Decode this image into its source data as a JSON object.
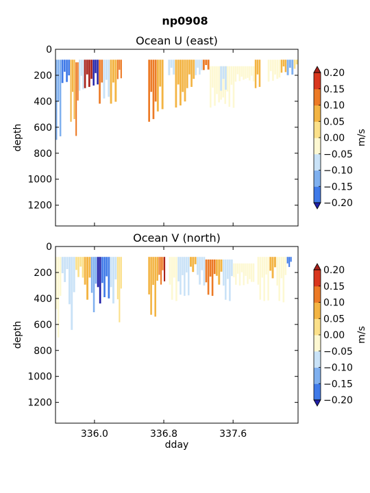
{
  "figure": {
    "title": "np0908"
  },
  "colorbar": {
    "label": "m/s",
    "levels": [
      -0.2,
      -0.15,
      -0.1,
      -0.05,
      0.0,
      0.05,
      0.1,
      0.15,
      0.2
    ],
    "tick_labels": [
      "0.20",
      "0.15",
      "0.10",
      "0.05",
      "0.00",
      "−0.05",
      "−0.10",
      "−0.15",
      "−0.20"
    ],
    "colors": [
      "#1f1fe6",
      "#3f7ae8",
      "#7fb0ef",
      "#c9e2f7",
      "#fdf8d2",
      "#fbe08a",
      "#f3b443",
      "#ec7a25",
      "#d9361d"
    ],
    "under_color": "#2020a8",
    "over_color": "#a8221a"
  },
  "chart_data": [
    {
      "type": "heatmap",
      "title": "Ocean U (east)",
      "ylabel": "depth",
      "xlabel": "",
      "xlim": [
        335.55,
        338.35
      ],
      "ylim": [
        1360,
        0
      ],
      "x_ticks": [
        336.0,
        336.8,
        337.6
      ],
      "x_tick_labels": [
        "336.0",
        "336.8",
        "337.6"
      ],
      "y_ticks": [
        0,
        200,
        400,
        600,
        800,
        1000,
        1200
      ],
      "y_tick_labels": [
        "0",
        "200",
        "400",
        "600",
        "800",
        "1000",
        "1200"
      ],
      "colorbar_label": "m/s",
      "patches": [
        {
          "x0": 335.55,
          "x1": 335.62,
          "top": 80,
          "bottom": 700,
          "value": -0.12
        },
        {
          "x0": 335.62,
          "x1": 335.72,
          "top": 80,
          "bottom": 260,
          "value": -0.18
        },
        {
          "x0": 335.72,
          "x1": 335.78,
          "top": 80,
          "bottom": 560,
          "value": 0.06
        },
        {
          "x0": 335.78,
          "x1": 335.82,
          "top": 100,
          "bottom": 670,
          "value": 0.1
        },
        {
          "x0": 335.82,
          "x1": 335.88,
          "top": 80,
          "bottom": 320,
          "value": -0.08
        },
        {
          "x0": 335.88,
          "x1": 335.98,
          "top": 80,
          "bottom": 300,
          "value": 0.2
        },
        {
          "x0": 335.98,
          "x1": 336.05,
          "top": 80,
          "bottom": 280,
          "value": -0.22
        },
        {
          "x0": 336.05,
          "x1": 336.1,
          "top": 80,
          "bottom": 420,
          "value": 0.12
        },
        {
          "x0": 336.1,
          "x1": 336.18,
          "top": 80,
          "bottom": 380,
          "value": -0.1
        },
        {
          "x0": 336.18,
          "x1": 336.26,
          "top": 80,
          "bottom": 420,
          "value": 0.05
        },
        {
          "x0": 336.26,
          "x1": 336.32,
          "top": 80,
          "bottom": 230,
          "value": 0.14
        },
        {
          "x0": 336.62,
          "x1": 336.72,
          "top": 80,
          "bottom": 560,
          "value": 0.12
        },
        {
          "x0": 336.72,
          "x1": 336.8,
          "top": 80,
          "bottom": 480,
          "value": 0.08
        },
        {
          "x0": 336.85,
          "x1": 336.93,
          "top": 80,
          "bottom": 200,
          "value": -0.08
        },
        {
          "x0": 336.93,
          "x1": 337.06,
          "top": 80,
          "bottom": 450,
          "value": 0.05
        },
        {
          "x0": 337.06,
          "x1": 337.16,
          "top": 80,
          "bottom": 300,
          "value": 0.08
        },
        {
          "x0": 337.16,
          "x1": 337.25,
          "top": 80,
          "bottom": 200,
          "value": -0.1
        },
        {
          "x0": 337.25,
          "x1": 337.33,
          "top": 80,
          "bottom": 160,
          "value": 0.12
        },
        {
          "x0": 337.33,
          "x1": 337.62,
          "top": 130,
          "bottom": 450,
          "value": -0.04
        },
        {
          "x0": 337.45,
          "x1": 337.53,
          "top": 130,
          "bottom": 320,
          "value": -0.08
        },
        {
          "x0": 337.62,
          "x1": 337.85,
          "top": 130,
          "bottom": 250,
          "value": -0.03
        },
        {
          "x0": 337.85,
          "x1": 337.92,
          "top": 80,
          "bottom": 300,
          "value": 0.05
        },
        {
          "x0": 338.0,
          "x1": 338.15,
          "top": 80,
          "bottom": 250,
          "value": -0.04
        },
        {
          "x0": 338.15,
          "x1": 338.22,
          "top": 80,
          "bottom": 180,
          "value": 0.06
        },
        {
          "x0": 338.22,
          "x1": 338.3,
          "top": 80,
          "bottom": 200,
          "value": -0.12
        },
        {
          "x0": 338.3,
          "x1": 338.35,
          "top": 80,
          "bottom": 150,
          "value": 0.04
        }
      ]
    },
    {
      "type": "heatmap",
      "title": "Ocean V (north)",
      "ylabel": "depth",
      "xlabel": "dday",
      "xlim": [
        335.55,
        338.35
      ],
      "ylim": [
        1360,
        0
      ],
      "x_ticks": [
        336.0,
        336.8,
        337.6
      ],
      "x_tick_labels": [
        "336.0",
        "336.8",
        "337.6"
      ],
      "y_ticks": [
        0,
        200,
        400,
        600,
        800,
        1000,
        1200
      ],
      "y_tick_labels": [
        "0",
        "200",
        "400",
        "600",
        "800",
        "1000",
        "1200"
      ],
      "colorbar_label": "m/s",
      "patches": [
        {
          "x0": 335.55,
          "x1": 335.62,
          "top": 80,
          "bottom": 720,
          "value": -0.04
        },
        {
          "x0": 335.62,
          "x1": 335.7,
          "top": 80,
          "bottom": 280,
          "value": -0.08
        },
        {
          "x0": 335.7,
          "x1": 335.78,
          "top": 80,
          "bottom": 660,
          "value": -0.1
        },
        {
          "x0": 335.78,
          "x1": 335.88,
          "top": 80,
          "bottom": 240,
          "value": 0.04
        },
        {
          "x0": 335.88,
          "x1": 335.96,
          "top": 80,
          "bottom": 420,
          "value": 0.06
        },
        {
          "x0": 335.96,
          "x1": 336.03,
          "top": 80,
          "bottom": 520,
          "value": -0.12
        },
        {
          "x0": 336.03,
          "x1": 336.08,
          "top": 80,
          "bottom": 450,
          "value": -0.22
        },
        {
          "x0": 336.08,
          "x1": 336.18,
          "top": 80,
          "bottom": 400,
          "value": -0.18
        },
        {
          "x0": 336.18,
          "x1": 336.26,
          "top": 80,
          "bottom": 450,
          "value": -0.06
        },
        {
          "x0": 336.26,
          "x1": 336.32,
          "top": 80,
          "bottom": 600,
          "value": 0.04
        },
        {
          "x0": 336.62,
          "x1": 336.74,
          "top": 80,
          "bottom": 540,
          "value": 0.08
        },
        {
          "x0": 336.74,
          "x1": 336.8,
          "top": 80,
          "bottom": 300,
          "value": 0.12
        },
        {
          "x0": 336.8,
          "x1": 336.82,
          "top": 80,
          "bottom": 380,
          "value": 0.22
        },
        {
          "x0": 336.86,
          "x1": 336.96,
          "top": 80,
          "bottom": 420,
          "value": -0.04
        },
        {
          "x0": 336.96,
          "x1": 337.1,
          "top": 80,
          "bottom": 380,
          "value": -0.06
        },
        {
          "x0": 337.1,
          "x1": 337.18,
          "top": 80,
          "bottom": 200,
          "value": 0.06
        },
        {
          "x0": 337.18,
          "x1": 337.28,
          "top": 80,
          "bottom": 300,
          "value": -0.06
        },
        {
          "x0": 337.28,
          "x1": 337.4,
          "top": 100,
          "bottom": 380,
          "value": 0.1
        },
        {
          "x0": 337.4,
          "x1": 337.48,
          "top": 100,
          "bottom": 300,
          "value": 0.06
        },
        {
          "x0": 337.48,
          "x1": 337.6,
          "top": 100,
          "bottom": 420,
          "value": -0.06
        },
        {
          "x0": 337.6,
          "x1": 337.85,
          "top": 130,
          "bottom": 300,
          "value": -0.03
        },
        {
          "x0": 337.88,
          "x1": 338.02,
          "top": 80,
          "bottom": 420,
          "value": -0.05
        },
        {
          "x0": 338.02,
          "x1": 338.1,
          "top": 80,
          "bottom": 250,
          "value": 0.08
        },
        {
          "x0": 338.1,
          "x1": 338.22,
          "top": 80,
          "bottom": 430,
          "value": -0.04
        },
        {
          "x0": 338.22,
          "x1": 338.28,
          "top": 80,
          "bottom": 160,
          "value": -0.16
        }
      ]
    }
  ]
}
